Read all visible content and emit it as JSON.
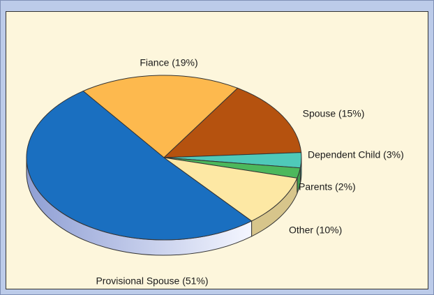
{
  "chart_data": {
    "type": "pie",
    "labels": [
      "Fiance (19%)",
      "Spouse (15%)",
      "Dependent Child (3%)",
      "Parents (2%)",
      "Other (10%)",
      "Provisional Spouse (51%)"
    ],
    "values": [
      19,
      15,
      3,
      2,
      10,
      51
    ],
    "colors": [
      "#fdb94e",
      "#b5520f",
      "#4fc9b9",
      "#4cb85c",
      "#fde8a4",
      "#1a6fc0"
    ]
  }
}
